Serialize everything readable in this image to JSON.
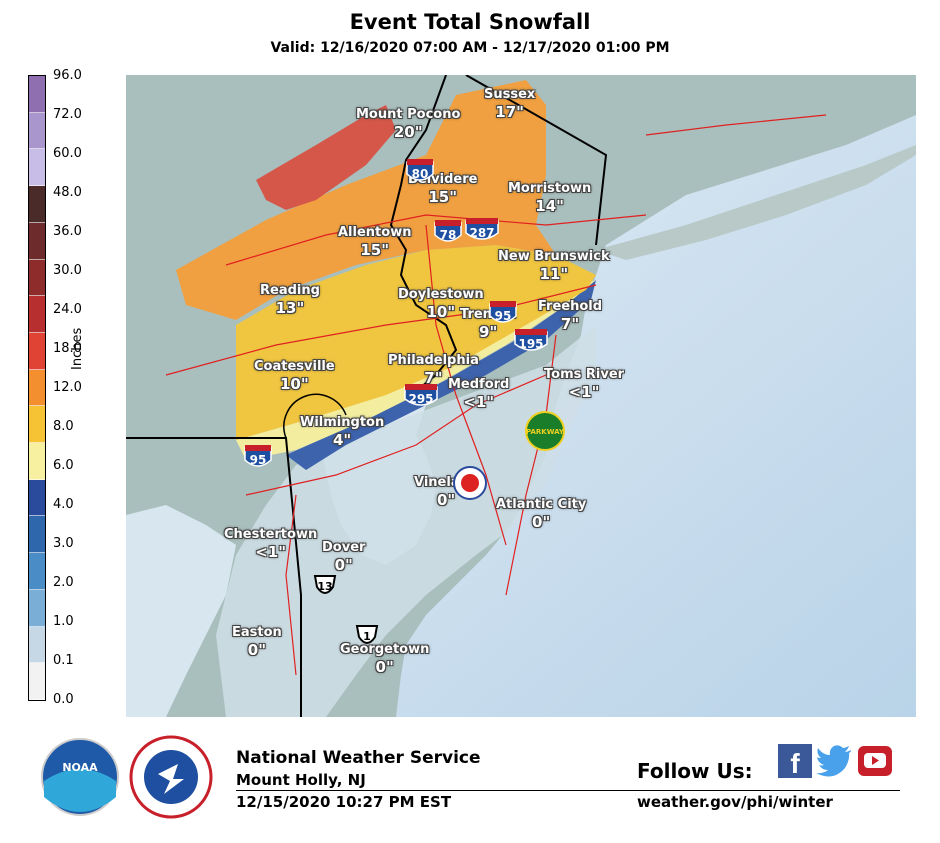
{
  "title": "Event Total Snowfall",
  "subtitle": "Valid: 12/16/2020 07:00 AM - 12/17/2020 01:00 PM",
  "legend": {
    "axis_label": "Inches",
    "ticks": [
      "96.0",
      "72.0",
      "60.0",
      "48.0",
      "36.0",
      "30.0",
      "24.0",
      "18.0",
      "12.0",
      "8.0",
      "6.0",
      "4.0",
      "3.0",
      "2.0",
      "1.0",
      "0.1",
      "0.0"
    ],
    "colors": [
      "#8f6fb0",
      "#a896cc",
      "#c8bde6",
      "#4b2a2a",
      "#6e2b2b",
      "#8e2b2b",
      "#b7302f",
      "#e04233",
      "#f38f2f",
      "#f5c334",
      "#f6f0a0",
      "#2a4a9c",
      "#2f67ad",
      "#4a8cc6",
      "#7aaed6",
      "#c6d8e6",
      "#f2f2f2"
    ]
  },
  "map": {
    "colors": {
      "land": "#a9bfbd",
      "water": "#d8e6f0",
      "band_20": "#d4574a",
      "band_15": "#f0a040",
      "band_10": "#f0c640",
      "band_4": "#f3eda0",
      "band_lt1": "#3d63ad",
      "band_0": "#cfdee6"
    },
    "cities": [
      {
        "name": "Mount Pocono",
        "value": "20\""
      },
      {
        "name": "Sussex",
        "value": "17\""
      },
      {
        "name": "Belvidere",
        "value": "15\""
      },
      {
        "name": "Morristown",
        "value": "14\""
      },
      {
        "name": "Allentown",
        "value": "15\""
      },
      {
        "name": "New Brunswick",
        "value": "11\""
      },
      {
        "name": "Reading",
        "value": "13\""
      },
      {
        "name": "Doylestown",
        "value": "10\""
      },
      {
        "name": "Trenton",
        "value": "9\""
      },
      {
        "name": "Freehold",
        "value": "7\""
      },
      {
        "name": "Coatesville",
        "value": "10\""
      },
      {
        "name": "Philadelphia",
        "value": "7\""
      },
      {
        "name": "Medford",
        "value": "<1\""
      },
      {
        "name": "Toms River",
        "value": "<1\""
      },
      {
        "name": "Wilmington",
        "value": "4\""
      },
      {
        "name": "Vineland",
        "value": "0\""
      },
      {
        "name": "Atlantic City",
        "value": "0\""
      },
      {
        "name": "Chestertown",
        "value": "<1\""
      },
      {
        "name": "Dover",
        "value": "0\""
      },
      {
        "name": "Easton",
        "value": "0\""
      },
      {
        "name": "Georgetown",
        "value": "0\""
      }
    ],
    "shields": {
      "i80": "80",
      "i78": "78",
      "i287": "287",
      "i95_north": "95",
      "i195": "195",
      "i295": "295",
      "i95_south": "95",
      "us13": "13",
      "us1": "1",
      "parkway": "PARKWAY"
    }
  },
  "footer": {
    "org": "National Weather Service",
    "office": "Mount Holly, NJ",
    "issued": "12/15/2020 10:27 PM EST",
    "follow": "Follow Us:",
    "url": "weather.gov/phi/winter",
    "noaa_logo": "NOAA",
    "nws_logo": "NATIONAL WEATHER SERVICE"
  }
}
